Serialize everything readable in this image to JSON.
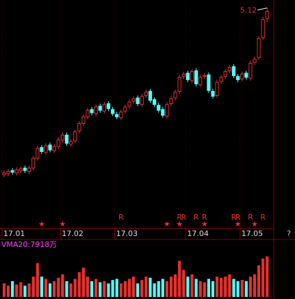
{
  "chart_data": {
    "type": "candlestick",
    "categories": [
      "17.01",
      null,
      null,
      null,
      null,
      null,
      null,
      null,
      null,
      null,
      null,
      null,
      null,
      null,
      "17.02",
      null,
      null,
      null,
      null,
      null,
      null,
      null,
      null,
      null,
      null,
      null,
      null,
      "17.03",
      null,
      null,
      null,
      null,
      null,
      null,
      null,
      null,
      null,
      null,
      null,
      null,
      null,
      null,
      null,
      null,
      "17.04",
      null,
      null,
      null,
      null,
      null,
      null,
      null,
      null,
      null,
      null,
      null,
      null,
      "17.05",
      null,
      null,
      null,
      null,
      null,
      null
    ],
    "open": [
      3.1,
      3.11,
      3.15,
      3.12,
      3.15,
      3.18,
      3.14,
      3.18,
      3.3,
      3.43,
      3.37,
      3.46,
      3.39,
      3.44,
      3.52,
      3.58,
      3.47,
      3.51,
      3.63,
      3.72,
      3.8,
      3.89,
      3.84,
      3.93,
      3.87,
      3.96,
      3.89,
      3.83,
      3.79,
      3.87,
      3.93,
      3.99,
      4.03,
      3.95,
      4.06,
      4.11,
      4.01,
      3.94,
      3.89,
      3.81,
      3.96,
      4.03,
      4.11,
      4.29,
      4.33,
      4.24,
      4.36,
      4.19,
      4.29,
      4.31,
      4.11,
      4.06,
      4.23,
      4.29,
      4.36,
      4.41,
      4.29,
      4.26,
      4.33,
      4.27,
      4.46,
      4.52,
      4.76,
      4.99
    ],
    "high": [
      3.15,
      3.17,
      3.18,
      3.19,
      3.2,
      3.21,
      3.21,
      3.33,
      3.45,
      3.46,
      3.48,
      3.49,
      3.47,
      3.55,
      3.61,
      3.61,
      3.53,
      3.65,
      3.75,
      3.83,
      3.91,
      3.92,
      3.95,
      3.96,
      3.98,
      3.99,
      3.92,
      3.86,
      3.89,
      3.95,
      4.01,
      4.05,
      4.06,
      4.08,
      4.13,
      4.14,
      4.04,
      3.97,
      3.92,
      3.98,
      4.05,
      4.13,
      4.31,
      4.35,
      4.36,
      4.38,
      4.39,
      4.31,
      4.33,
      4.34,
      4.14,
      4.25,
      4.31,
      4.38,
      4.43,
      4.44,
      4.32,
      4.35,
      4.36,
      4.48,
      4.53,
      4.78,
      5.01,
      5.12
    ],
    "low": [
      3.07,
      3.08,
      3.1,
      3.09,
      3.12,
      3.12,
      3.11,
      3.15,
      3.27,
      3.35,
      3.34,
      3.37,
      3.36,
      3.41,
      3.49,
      3.45,
      3.44,
      3.48,
      3.6,
      3.69,
      3.77,
      3.82,
      3.81,
      3.85,
      3.84,
      3.87,
      3.81,
      3.77,
      3.76,
      3.84,
      3.9,
      3.96,
      3.93,
      3.92,
      4.03,
      3.97,
      3.92,
      3.85,
      3.79,
      3.78,
      3.93,
      4.0,
      4.08,
      4.26,
      4.22,
      4.21,
      4.17,
      4.16,
      4.26,
      4.09,
      4.02,
      4.03,
      4.2,
      4.26,
      4.33,
      4.27,
      4.22,
      4.23,
      4.25,
      4.24,
      4.43,
      4.49,
      4.73,
      4.95
    ],
    "close": [
      3.12,
      3.14,
      3.13,
      3.16,
      3.17,
      3.15,
      3.18,
      3.3,
      3.42,
      3.38,
      3.45,
      3.4,
      3.44,
      3.52,
      3.58,
      3.48,
      3.5,
      3.62,
      3.72,
      3.8,
      3.88,
      3.85,
      3.92,
      3.88,
      3.95,
      3.9,
      3.84,
      3.8,
      3.86,
      3.92,
      3.98,
      4.02,
      3.96,
      4.05,
      4.1,
      4.0,
      3.95,
      3.88,
      3.82,
      3.95,
      4.02,
      4.1,
      4.28,
      4.32,
      4.25,
      4.35,
      4.2,
      4.28,
      4.3,
      4.12,
      4.05,
      4.22,
      4.28,
      4.35,
      4.4,
      4.3,
      4.25,
      4.32,
      4.28,
      4.45,
      4.5,
      4.75,
      4.98,
      5.08
    ],
    "volume": [
      6000,
      5000,
      7000,
      5500,
      6500,
      5000,
      6000,
      9000,
      15000,
      9000,
      8000,
      6000,
      7000,
      8500,
      10000,
      7000,
      6000,
      8000,
      11000,
      13000,
      9000,
      7000,
      8000,
      6500,
      7000,
      6000,
      7500,
      8000,
      6000,
      7000,
      8000,
      9000,
      6000,
      7500,
      9000,
      8500,
      6000,
      7000,
      8000,
      7000,
      9000,
      10000,
      16000,
      12000,
      9000,
      10000,
      8000,
      7000,
      6500,
      8000,
      7000,
      9000,
      8500,
      9000,
      10000,
      8000,
      7000,
      7500,
      7000,
      9000,
      10000,
      14000,
      17000,
      18000
    ],
    "up_color": "#e8302c",
    "down_color": "#54ffff",
    "ylim": [
      2.58,
      5.2
    ],
    "volume_ylim": [
      0,
      20000
    ],
    "volume_label": "VMA20:7918万",
    "r_marks": [
      {
        "index": 28,
        "label": "R"
      },
      {
        "index": 42,
        "label": "R"
      },
      {
        "index": 43,
        "label": "R"
      },
      {
        "index": 46,
        "label": "R"
      },
      {
        "index": 48,
        "label": "R"
      },
      {
        "index": 55,
        "label": "R"
      },
      {
        "index": 56,
        "label": "R"
      },
      {
        "index": 59,
        "label": "R"
      },
      {
        "index": 62,
        "label": "R"
      }
    ],
    "star_marks": [
      {
        "index": 9,
        "label": "★"
      },
      {
        "index": 14,
        "label": "★"
      },
      {
        "index": 39,
        "label": "★"
      },
      {
        "index": 42,
        "label": "★"
      },
      {
        "index": 48,
        "label": "★"
      },
      {
        "index": 56,
        "label": "★"
      },
      {
        "index": 60,
        "label": "★"
      }
    ],
    "help": "?"
  }
}
